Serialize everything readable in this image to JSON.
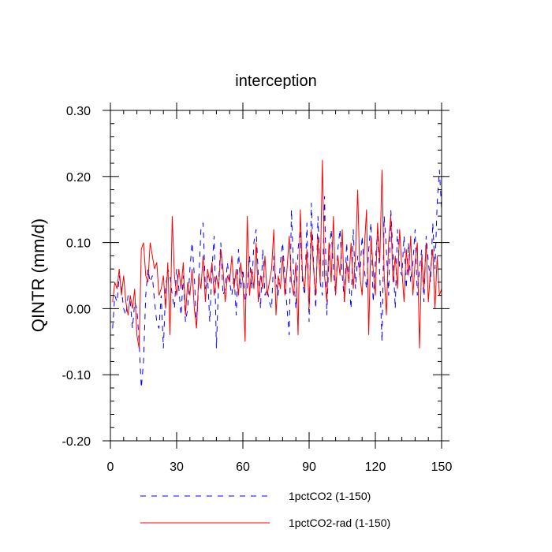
{
  "chart_data": {
    "type": "line",
    "title": "interception",
    "xlabel": "",
    "ylabel": "QINTR  (mm/d)",
    "xlim": [
      0,
      150
    ],
    "ylim": [
      -0.2,
      0.3
    ],
    "xticks": [
      "0",
      "30",
      "60",
      "90",
      "120",
      "150"
    ],
    "yticks": [
      "-0.20",
      "-0.10",
      "0.00",
      "0.10",
      "0.20",
      "0.30"
    ],
    "grid": false,
    "legend_position": "bottom",
    "series": [
      {
        "name": "1pctCO2 (1-150)",
        "color": "#0000ff",
        "style": "dashed",
        "x": [
          1,
          2,
          3,
          4,
          5,
          6,
          7,
          8,
          9,
          10,
          11,
          12,
          13,
          14,
          15,
          16,
          17,
          18,
          19,
          20,
          21,
          22,
          23,
          24,
          25,
          26,
          27,
          28,
          29,
          30,
          31,
          32,
          33,
          34,
          35,
          36,
          37,
          38,
          39,
          40,
          41,
          42,
          43,
          44,
          45,
          46,
          47,
          48,
          49,
          50,
          51,
          52,
          53,
          54,
          55,
          56,
          57,
          58,
          59,
          60,
          61,
          62,
          63,
          64,
          65,
          66,
          67,
          68,
          69,
          70,
          71,
          72,
          73,
          74,
          75,
          76,
          77,
          78,
          79,
          80,
          81,
          82,
          83,
          84,
          85,
          86,
          87,
          88,
          89,
          90,
          91,
          92,
          93,
          94,
          95,
          96,
          97,
          98,
          99,
          100,
          101,
          102,
          103,
          104,
          105,
          106,
          107,
          108,
          109,
          110,
          111,
          112,
          113,
          114,
          115,
          116,
          117,
          118,
          119,
          120,
          121,
          122,
          123,
          124,
          125,
          126,
          127,
          128,
          129,
          130,
          131,
          132,
          133,
          134,
          135,
          136,
          137,
          138,
          139,
          140,
          141,
          142,
          143,
          144,
          145,
          146,
          147,
          148,
          149,
          150
        ],
        "values": [
          -0.03,
          0.02,
          0.01,
          0.05,
          0.03,
          0.0,
          -0.01,
          0.02,
          0.01,
          -0.03,
          0.01,
          0.0,
          -0.05,
          -0.12,
          -0.08,
          0.02,
          0.06,
          0.04,
          0.05,
          0.01,
          -0.02,
          -0.03,
          0.02,
          -0.06,
          0.03,
          0.06,
          0.05,
          0.02,
          0.0,
          0.06,
          0.03,
          -0.01,
          0.05,
          -0.02,
          0.0,
          0.06,
          0.1,
          0.05,
          -0.03,
          0.04,
          0.12,
          0.13,
          0.03,
          0.05,
          -0.02,
          0.06,
          0.11,
          -0.06,
          0.04,
          0.1,
          0.02,
          0.03,
          0.07,
          0.04,
          0.02,
          0.05,
          -0.01,
          0.09,
          0.03,
          0.06,
          0.01,
          0.03,
          0.08,
          0.03,
          0.1,
          0.12,
          0.05,
          0.0,
          0.09,
          0.02,
          0.03,
          0.01,
          0.0,
          0.08,
          0.04,
          0.02,
          0.07,
          0.1,
          0.05,
          0.0,
          -0.04,
          0.15,
          0.05,
          0.0,
          0.09,
          0.12,
          0.04,
          0.02,
          0.13,
          -0.02,
          0.16,
          0.07,
          0.0,
          0.14,
          0.04,
          0.02,
          0.17,
          -0.01,
          0.08,
          0.12,
          0.06,
          0.02,
          0.09,
          0.12,
          0.05,
          0.01,
          0.1,
          0.04,
          0.0,
          0.12,
          0.03,
          0.08,
          0.05,
          0.11,
          0.06,
          0.03,
          0.09,
          0.13,
          0.01,
          0.07,
          0.12,
          0.05,
          -0.05,
          0.14,
          0.09,
          0.02,
          0.15,
          0.08,
          0.0,
          0.12,
          0.06,
          0.05,
          0.11,
          0.03,
          0.1,
          0.04,
          0.07,
          0.12,
          0.02,
          0.06,
          0.09,
          0.01,
          0.11,
          0.07,
          0.04,
          0.13,
          0.06,
          0.16,
          0.21,
          0.15
        ]
      },
      {
        "name": "1pctCO2-rad (1-150)",
        "color": "#ff0000",
        "style": "solid",
        "x": [
          1,
          2,
          3,
          4,
          5,
          6,
          7,
          8,
          9,
          10,
          11,
          12,
          13,
          14,
          15,
          16,
          17,
          18,
          19,
          20,
          21,
          22,
          23,
          24,
          25,
          26,
          27,
          28,
          29,
          30,
          31,
          32,
          33,
          34,
          35,
          36,
          37,
          38,
          39,
          40,
          41,
          42,
          43,
          44,
          45,
          46,
          47,
          48,
          49,
          50,
          51,
          52,
          53,
          54,
          55,
          56,
          57,
          58,
          59,
          60,
          61,
          62,
          63,
          64,
          65,
          66,
          67,
          68,
          69,
          70,
          71,
          72,
          73,
          74,
          75,
          76,
          77,
          78,
          79,
          80,
          81,
          82,
          83,
          84,
          85,
          86,
          87,
          88,
          89,
          90,
          91,
          92,
          93,
          94,
          95,
          96,
          97,
          98,
          99,
          100,
          101,
          102,
          103,
          104,
          105,
          106,
          107,
          108,
          109,
          110,
          111,
          112,
          113,
          114,
          115,
          116,
          117,
          118,
          119,
          120,
          121,
          122,
          123,
          124,
          125,
          126,
          127,
          128,
          129,
          130,
          131,
          132,
          133,
          134,
          135,
          136,
          137,
          138,
          139,
          140,
          141,
          142,
          143,
          144,
          145,
          146,
          147,
          148,
          149,
          150
        ],
        "values": [
          0.01,
          0.04,
          0.03,
          0.06,
          0.02,
          0.05,
          0.01,
          -0.01,
          0.02,
          0.0,
          0.03,
          -0.04,
          -0.06,
          0.09,
          0.1,
          0.05,
          0.04,
          0.1,
          0.08,
          0.06,
          0.07,
          0.02,
          0.03,
          0.05,
          0.0,
          0.07,
          -0.04,
          0.14,
          0.05,
          0.02,
          0.06,
          0.03,
          0.07,
          -0.01,
          0.04,
          0.02,
          0.06,
          0.0,
          -0.03,
          0.05,
          0.03,
          0.08,
          0.01,
          0.06,
          0.04,
          0.07,
          0.02,
          0.05,
          0.03,
          0.09,
          0.06,
          0.01,
          0.05,
          0.04,
          0.08,
          0.03,
          0.06,
          0.02,
          0.07,
          0.04,
          -0.05,
          0.14,
          0.02,
          0.06,
          0.03,
          0.1,
          0.01,
          0.05,
          0.03,
          0.08,
          0.02,
          0.04,
          0.06,
          0.12,
          -0.01,
          0.05,
          0.03,
          0.08,
          0.02,
          0.06,
          0.11,
          0.04,
          0.02,
          0.07,
          -0.04,
          0.15,
          0.05,
          0.03,
          0.09,
          0.0,
          0.12,
          0.06,
          0.02,
          0.11,
          0.04,
          0.225,
          0.05,
          0.01,
          0.1,
          0.04,
          0.14,
          0.02,
          0.08,
          0.05,
          0.12,
          0.01,
          0.07,
          0.04,
          0.1,
          0.03,
          0.08,
          0.18,
          0.05,
          0.02,
          0.09,
          0.15,
          -0.04,
          0.11,
          0.06,
          0.02,
          0.13,
          0.07,
          0.21,
          0.05,
          -0.01,
          0.1,
          0.14,
          0.04,
          0.08,
          0.03,
          0.12,
          0.06,
          0.01,
          0.09,
          0.05,
          0.11,
          0.02,
          0.07,
          0.1,
          -0.06,
          0.08,
          0.03,
          0.1,
          0.01,
          0.06,
          0.09,
          0.0,
          0.08,
          0.02,
          0.03
        ]
      }
    ]
  }
}
